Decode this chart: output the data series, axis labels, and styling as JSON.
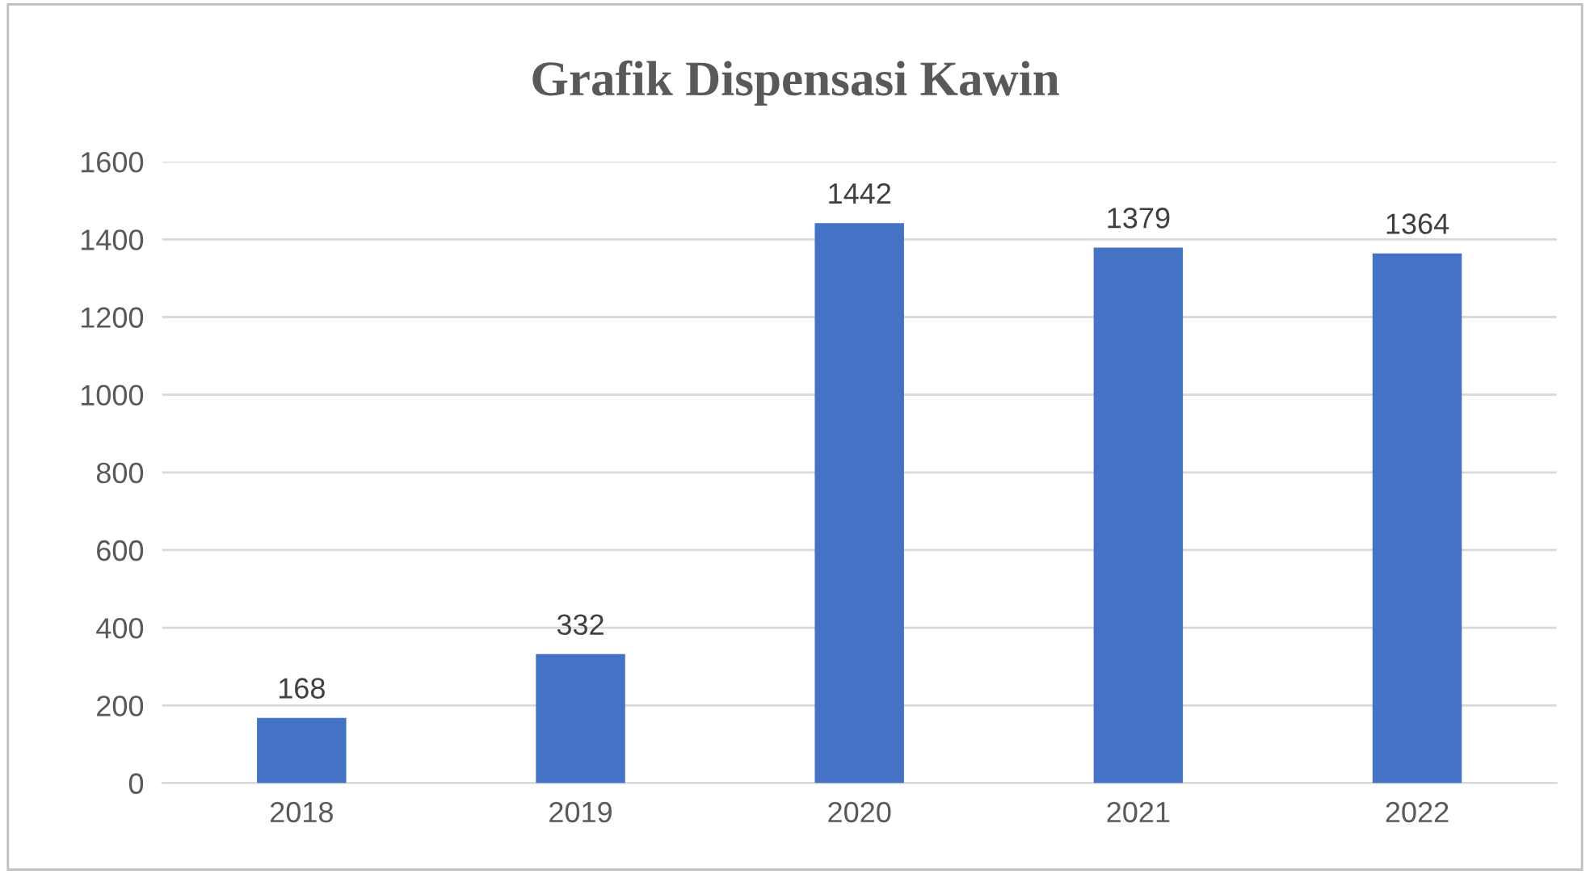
{
  "chart_data": {
    "type": "bar",
    "title": "Grafik Dispensasi Kawin",
    "categories": [
      "2018",
      "2019",
      "2020",
      "2021",
      "2022"
    ],
    "values": [
      168,
      332,
      1442,
      1379,
      1364
    ],
    "color": "#4472c4",
    "ylim": [
      0,
      1600
    ],
    "yticks": [
      0,
      200,
      400,
      600,
      800,
      1000,
      1200,
      1400,
      1600
    ],
    "grid": "y",
    "data_labels": true,
    "legend": false
  }
}
